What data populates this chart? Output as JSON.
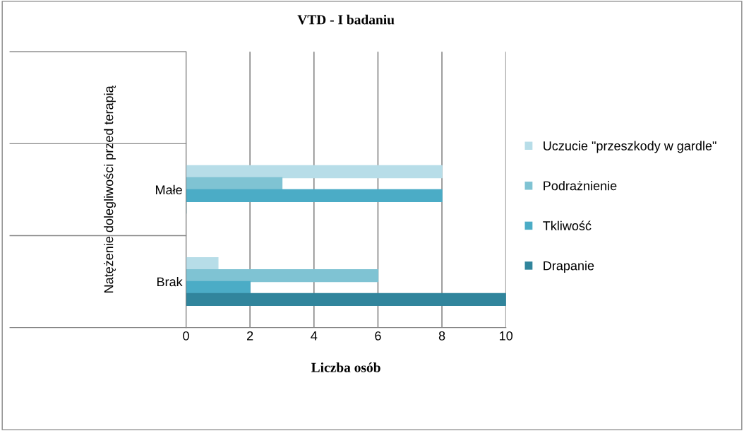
{
  "chart_data": {
    "type": "bar",
    "orientation": "horizontal",
    "title": "VTD - I badaniu",
    "xlabel": "Liczba osób",
    "ylabel": "Natężenie dolegliwości przed terapią",
    "categories": [
      null,
      "Małe",
      "Brak"
    ],
    "series": [
      {
        "name": "Uczucie \"przeszkody w gardle\"",
        "color": "#b7dde8",
        "values": [
          null,
          8,
          1
        ]
      },
      {
        "name": "Podrażnienie",
        "color": "#7fc3d3",
        "values": [
          null,
          3,
          6
        ]
      },
      {
        "name": "Tkliwość",
        "color": "#4bacc6",
        "values": [
          null,
          8,
          2
        ]
      },
      {
        "name": "Drapanie",
        "color": "#31859c",
        "values": [
          null,
          0,
          10
        ]
      }
    ],
    "xlim": [
      0,
      10
    ],
    "xticks": [
      0,
      2,
      4,
      6,
      8,
      10
    ],
    "grid": "x",
    "legend": "right"
  }
}
